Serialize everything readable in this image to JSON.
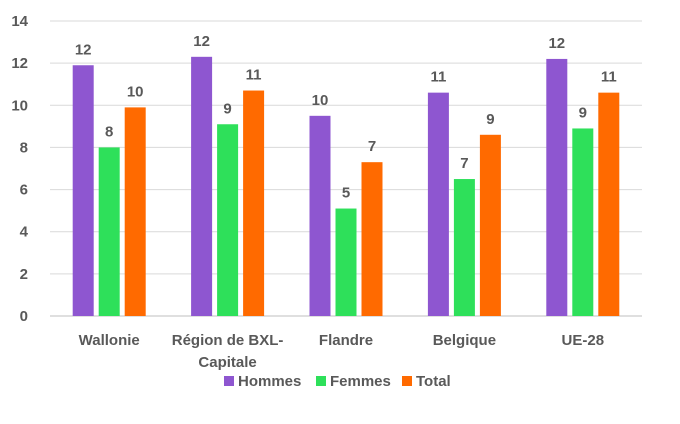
{
  "chart_data": {
    "type": "bar",
    "categories": [
      "Wallonie",
      "Région de BXL-Capitale",
      "Flandre",
      "Belgique",
      "UE-28"
    ],
    "category_lines": [
      [
        "Wallonie"
      ],
      [
        "Région de BXL-",
        "Capitale"
      ],
      [
        "Flandre"
      ],
      [
        "Belgique"
      ],
      [
        "UE-28"
      ]
    ],
    "series": [
      {
        "name": "Hommes",
        "color": "#8e56d0",
        "values": [
          11.9,
          12.3,
          9.5,
          10.6,
          12.2
        ],
        "labels": [
          "12",
          "12",
          "10",
          "11",
          "12"
        ]
      },
      {
        "name": "Femmes",
        "color": "#2ee05a",
        "values": [
          8.0,
          9.1,
          5.1,
          6.5,
          8.9
        ],
        "labels": [
          "8",
          "9",
          "5",
          "7",
          "9"
        ]
      },
      {
        "name": "Total",
        "color": "#ff6a00",
        "values": [
          9.9,
          10.7,
          7.3,
          8.6,
          10.6
        ],
        "labels": [
          "10",
          "11",
          "7",
          "9",
          "11"
        ]
      }
    ],
    "ylim": [
      0,
      14
    ],
    "yticks": [
      0,
      2,
      4,
      6,
      8,
      10,
      12,
      14
    ],
    "grid": true,
    "legend_position": "bottom"
  }
}
